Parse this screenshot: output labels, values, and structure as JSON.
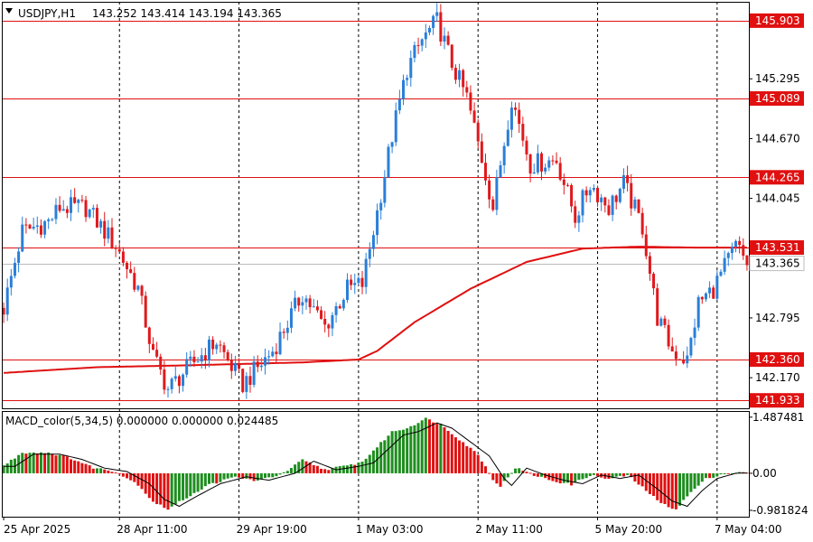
{
  "header": {
    "symbol": "USDJPY,H1",
    "ohlc": "143.252 143.414 143.194 143.365"
  },
  "macd_header": "MACD_color(5,34,5) 0.000000 0.000000 0.024485",
  "colors": {
    "bull": "#2a7fd8",
    "bear": "#e0191c",
    "level": "#e01010",
    "ma": "#e01010",
    "hist_up": "#1e8e1e",
    "hist_down": "#e01010",
    "grid": "#000000"
  },
  "chart_data": {
    "type": "line",
    "title": "USDJPY,H1",
    "ylim": [
      141.85,
      146.1
    ],
    "price_ticks": [
      "145.295",
      "144.670",
      "144.045",
      "142.795",
      "142.170"
    ],
    "price_tick_values": [
      145.295,
      144.67,
      144.045,
      142.795,
      142.17
    ],
    "levels": [
      {
        "label": "145.903",
        "value": 145.903
      },
      {
        "label": "145.089",
        "value": 145.089
      },
      {
        "label": "144.265",
        "value": 144.265
      },
      {
        "label": "143.531",
        "value": 143.531
      },
      {
        "label": "142.360",
        "value": 142.36
      },
      {
        "label": "141.933",
        "value": 141.933
      }
    ],
    "current_price": {
      "label": "143.365",
      "value": 143.365
    },
    "time_labels": [
      "25 Apr 2025",
      "28 Apr 11:00",
      "29 Apr 19:00",
      "1 May 03:00",
      "2 May 11:00",
      "5 May 20:00",
      "7 May 04:00"
    ],
    "time_label_bar_index": [
      0,
      31,
      63,
      95,
      127,
      159,
      191
    ],
    "bar_count": 200,
    "price_path": [
      [
        0,
        142.9
      ],
      [
        5,
        143.7
      ],
      [
        12,
        143.8
      ],
      [
        15,
        143.95
      ],
      [
        22,
        143.95
      ],
      [
        30,
        143.55
      ],
      [
        36,
        143.1
      ],
      [
        40,
        142.4
      ],
      [
        44,
        142.05
      ],
      [
        50,
        142.3
      ],
      [
        57,
        142.55
      ],
      [
        60,
        142.35
      ],
      [
        64,
        142.1
      ],
      [
        72,
        142.45
      ],
      [
        80,
        143.05
      ],
      [
        86,
        142.7
      ],
      [
        92,
        143.1
      ],
      [
        96,
        143.15
      ],
      [
        100,
        143.9
      ],
      [
        104,
        144.7
      ],
      [
        108,
        145.4
      ],
      [
        112,
        145.7
      ],
      [
        116,
        145.9
      ],
      [
        120,
        145.45
      ],
      [
        124,
        145.1
      ],
      [
        129,
        144.3
      ],
      [
        131,
        143.95
      ],
      [
        136,
        145.1
      ],
      [
        141,
        144.4
      ],
      [
        148,
        144.45
      ],
      [
        153,
        143.85
      ],
      [
        157,
        144.2
      ],
      [
        162,
        143.95
      ],
      [
        166,
        144.2
      ],
      [
        171,
        143.75
      ],
      [
        175,
        142.8
      ],
      [
        179,
        142.45
      ],
      [
        183,
        142.35
      ],
      [
        186,
        142.95
      ],
      [
        190,
        143.1
      ],
      [
        196,
        143.55
      ],
      [
        199,
        143.37
      ]
    ],
    "ma_path": [
      [
        0,
        142.22
      ],
      [
        25,
        142.28
      ],
      [
        50,
        142.3
      ],
      [
        80,
        142.33
      ],
      [
        95,
        142.36
      ],
      [
        100,
        142.45
      ],
      [
        110,
        142.75
      ],
      [
        125,
        143.1
      ],
      [
        140,
        143.38
      ],
      [
        155,
        143.52
      ],
      [
        170,
        143.54
      ],
      [
        185,
        143.53
      ],
      [
        199,
        143.53
      ]
    ],
    "macd": {
      "ylim": [
        -1.15,
        1.65
      ],
      "ticks": [
        "1.487481",
        "0.00",
        "-0.981824"
      ],
      "tick_values": [
        1.487481,
        0.0,
        -0.981824
      ],
      "path": [
        [
          0,
          0.2
        ],
        [
          5,
          0.55
        ],
        [
          12,
          0.55
        ],
        [
          18,
          0.4
        ],
        [
          24,
          0.15
        ],
        [
          30,
          0.05
        ],
        [
          36,
          -0.3
        ],
        [
          40,
          -0.75
        ],
        [
          44,
          -0.95
        ],
        [
          48,
          -0.7
        ],
        [
          55,
          -0.3
        ],
        [
          62,
          -0.1
        ],
        [
          68,
          -0.2
        ],
        [
          75,
          0.0
        ],
        [
          80,
          0.35
        ],
        [
          86,
          0.1
        ],
        [
          92,
          0.2
        ],
        [
          96,
          0.3
        ],
        [
          100,
          0.7
        ],
        [
          104,
          1.1
        ],
        [
          108,
          1.2
        ],
        [
          113,
          1.45
        ],
        [
          117,
          1.3
        ],
        [
          122,
          0.9
        ],
        [
          127,
          0.5
        ],
        [
          131,
          -0.15
        ],
        [
          133,
          -0.35
        ],
        [
          137,
          0.15
        ],
        [
          142,
          -0.05
        ],
        [
          147,
          -0.2
        ],
        [
          152,
          -0.3
        ],
        [
          157,
          -0.05
        ],
        [
          162,
          -0.15
        ],
        [
          167,
          -0.05
        ],
        [
          172,
          -0.45
        ],
        [
          176,
          -0.8
        ],
        [
          180,
          -0.95
        ],
        [
          184,
          -0.5
        ],
        [
          188,
          -0.15
        ],
        [
          193,
          0.0
        ],
        [
          199,
          0.02
        ]
      ]
    }
  }
}
